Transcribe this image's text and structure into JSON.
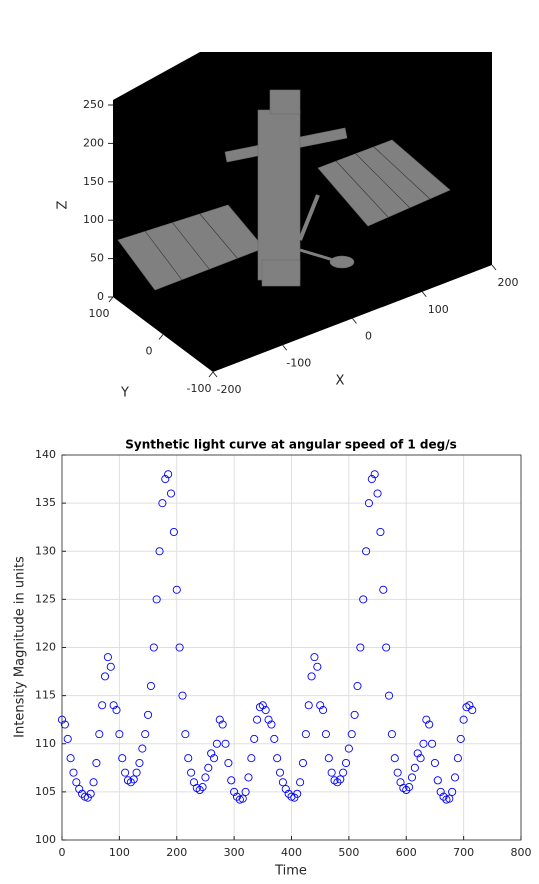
{
  "chart_data": [
    {
      "type": "render3d",
      "xlabel": "X",
      "ylabel": "Y",
      "zlabel": "Z",
      "xlim": [
        -200,
        200
      ],
      "ylim": [
        -100,
        100
      ],
      "zlim": [
        0,
        250
      ],
      "xticks": [
        -200,
        -100,
        0,
        100,
        200
      ],
      "yticks": [
        -100,
        0,
        100
      ],
      "zticks": [
        0,
        50,
        100,
        150,
        200,
        250
      ]
    },
    {
      "type": "scatter",
      "title": "Synthetic light curve at angular speed of 1 deg/s",
      "xlabel": "Time",
      "ylabel": "Intensity Magnitude in units",
      "color": "#0000ff",
      "grid": true,
      "xlim": [
        0,
        800
      ],
      "ylim": [
        100,
        140
      ],
      "xticks": [
        0,
        100,
        200,
        300,
        400,
        500,
        600,
        700,
        800
      ],
      "yticks": [
        100,
        105,
        110,
        115,
        120,
        125,
        130,
        135,
        140
      ],
      "x": [
        0,
        5,
        10,
        15,
        20,
        25,
        30,
        35,
        40,
        45,
        50,
        55,
        60,
        65,
        70,
        75,
        80,
        85,
        90,
        95,
        100,
        105,
        110,
        115,
        120,
        125,
        130,
        135,
        140,
        145,
        150,
        155,
        160,
        165,
        170,
        175,
        180,
        185,
        190,
        195,
        200,
        205,
        210,
        215,
        220,
        225,
        230,
        235,
        240,
        245,
        250,
        255,
        260,
        265,
        270,
        275,
        280,
        285,
        290,
        295,
        300,
        305,
        310,
        315,
        320,
        325,
        330,
        335,
        340,
        345,
        350,
        355,
        360,
        365,
        370,
        375,
        380,
        385,
        390,
        395,
        400,
        405,
        410,
        415,
        420,
        425,
        430,
        435,
        440,
        445,
        450,
        455,
        460,
        465,
        470,
        475,
        480,
        485,
        490,
        495,
        500,
        505,
        510,
        515,
        520,
        525,
        530,
        535,
        540,
        545,
        550,
        555,
        560,
        565,
        570,
        575,
        580,
        585,
        590,
        595,
        600,
        605,
        610,
        615,
        620,
        625,
        630,
        635,
        640,
        645,
        650,
        655,
        660,
        665,
        670,
        675,
        680,
        685,
        690,
        695,
        700,
        705,
        710,
        715
      ],
      "values": [
        112.5,
        112,
        110.5,
        108.5,
        107,
        106,
        105.3,
        104.8,
        104.5,
        104.4,
        104.8,
        106,
        108,
        111,
        114,
        117,
        119,
        118,
        114,
        113.5,
        111,
        108.5,
        107,
        106.2,
        106,
        106.3,
        107,
        108,
        109.5,
        111,
        113,
        116,
        120,
        125,
        130,
        135,
        137.5,
        138,
        136,
        132,
        126,
        120,
        115,
        111,
        108.5,
        107,
        106,
        105.4,
        105.2,
        105.5,
        106.5,
        107.5,
        109,
        108.5,
        110,
        112.5,
        112,
        110,
        108,
        106.2,
        105,
        104.5,
        104.2,
        104.3,
        105,
        106.5,
        108.5,
        110.5,
        112.5,
        113.8,
        114,
        113.5,
        112.5,
        112,
        110.5,
        108.5,
        107,
        106,
        105.3,
        104.8,
        104.5,
        104.4,
        104.8,
        106,
        108,
        111,
        114,
        117,
        119,
        118,
        114,
        113.5,
        111,
        108.5,
        107,
        106.2,
        106,
        106.3,
        107,
        108,
        109.5,
        111,
        113,
        116,
        120,
        125,
        130,
        135,
        137.5,
        138,
        136,
        132,
        126,
        120,
        115,
        111,
        108.5,
        107,
        106,
        105.4,
        105.2,
        105.5,
        106.5,
        107.5,
        109,
        108.5,
        110,
        112.5,
        112,
        110,
        108,
        106.2,
        105,
        104.5,
        104.2,
        104.3,
        105,
        106.5,
        108.5,
        110.5,
        112.5,
        113.8,
        114,
        113.5
      ]
    }
  ]
}
